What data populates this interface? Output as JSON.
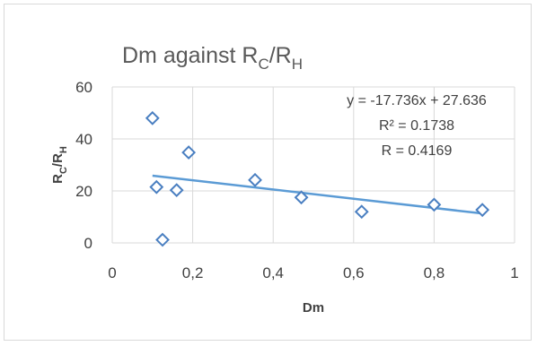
{
  "chart_data": {
    "type": "scatter",
    "title": {
      "main": "Dm against R",
      "sub1": "C",
      "mid": "/R",
      "sub2": "H"
    },
    "xlabel": "Dm",
    "ylabel": {
      "main": "R",
      "sub1": "C",
      "mid": "/R",
      "sub2": "H"
    },
    "xlim": [
      0,
      1
    ],
    "ylim": [
      0,
      60
    ],
    "x_ticks": [
      "0",
      "0,2",
      "0,4",
      "0,6",
      "0,8",
      "1"
    ],
    "x_tick_values": [
      0,
      0.2,
      0.4,
      0.6,
      0.8,
      1
    ],
    "y_ticks": [
      "0",
      "20",
      "40",
      "60"
    ],
    "y_tick_values": [
      0,
      20,
      40,
      60
    ],
    "grid": true,
    "points": [
      {
        "x": 0.1,
        "y": 48
      },
      {
        "x": 0.11,
        "y": 21.5
      },
      {
        "x": 0.125,
        "y": 1.2
      },
      {
        "x": 0.16,
        "y": 20.3
      },
      {
        "x": 0.19,
        "y": 34.8
      },
      {
        "x": 0.355,
        "y": 24.2
      },
      {
        "x": 0.47,
        "y": 17.5
      },
      {
        "x": 0.62,
        "y": 12.0
      },
      {
        "x": 0.8,
        "y": 14.7
      },
      {
        "x": 0.92,
        "y": 12.7
      }
    ],
    "trendline": {
      "slope": -17.736,
      "intercept": 27.636,
      "x_range": [
        0.1,
        0.92
      ]
    },
    "annotations": [
      "y = -17.736x + 27.636",
      "R² = 0.1738",
      "R = 0.4169"
    ],
    "colors": {
      "marker": "#4a7fc1",
      "trendline": "#5b9bd5",
      "grid": "#d9d9d9"
    }
  }
}
